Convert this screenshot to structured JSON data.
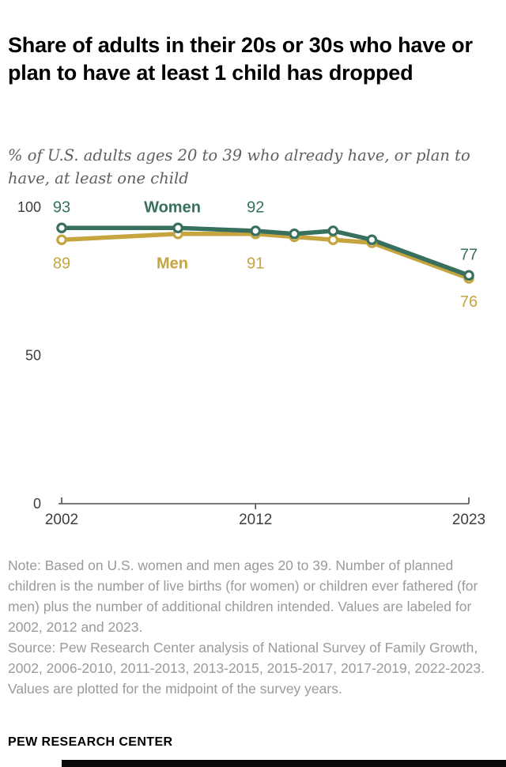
{
  "chart_data": {
    "type": "line",
    "title": "Share of adults in their 20s or 30s who have or plan to have at least 1 child has dropped",
    "subtitle": "% of U.S. adults ages 20 to 39 who already have, or plan to have, at least one child",
    "x": [
      2002,
      2008,
      2012,
      2014,
      2016,
      2018,
      2023
    ],
    "xlim": [
      2002,
      2023
    ],
    "ylim": [
      0,
      100
    ],
    "xticks": [
      2002,
      2012,
      2023
    ],
    "yticks": [
      0,
      50,
      100
    ],
    "grid": false,
    "legend_position": "inline",
    "series": [
      {
        "name": "Women",
        "color": "#37705e",
        "values": [
          93,
          93,
          92,
          91,
          92,
          89,
          77
        ]
      },
      {
        "name": "Men",
        "color": "#c6a43e",
        "values": [
          89,
          91,
          91,
          90,
          89,
          88,
          76
        ]
      }
    ],
    "point_labels": [
      {
        "series": "Women",
        "year": 2002,
        "value": 93,
        "placement": "above"
      },
      {
        "series": "Women",
        "year": 2012,
        "value": 92,
        "placement": "above"
      },
      {
        "series": "Women",
        "year": 2023,
        "value": 77,
        "placement": "above"
      },
      {
        "series": "Men",
        "year": 2002,
        "value": 89,
        "placement": "below"
      },
      {
        "series": "Men",
        "year": 2012,
        "value": 91,
        "placement": "below"
      },
      {
        "series": "Men",
        "year": 2023,
        "value": 76,
        "placement": "below"
      }
    ]
  },
  "notes": {
    "note": "Note: Based on U.S. women and men ages 20 to 39. Number of planned children is the number of live births (for women) or children ever fathered (for men) plus the number of additional children intended. Values are labeled for 2002, 2012 and 2023.",
    "source": "Source: Pew Research Center analysis of National Survey of Family Growth, 2002, 2006-2010, 2011-2013, 2013-2015, 2015-2017, 2017-2019, 2022-2023. Values are plotted for the midpoint of the survey years."
  },
  "footer": {
    "brand": "PEW RESEARCH CENTER"
  }
}
